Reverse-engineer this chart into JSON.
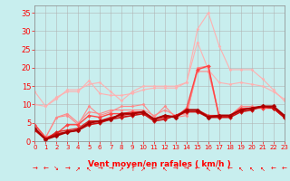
{
  "x": [
    0,
    1,
    2,
    3,
    4,
    5,
    6,
    7,
    8,
    9,
    10,
    11,
    12,
    13,
    14,
    15,
    16,
    17,
    18,
    19,
    20,
    21,
    22,
    23
  ],
  "series": [
    {
      "color": "#FFB0B0",
      "lw": 0.8,
      "marker": "D",
      "ms": 1.5,
      "y": [
        13.5,
        9.5,
        11.5,
        14.0,
        14.0,
        15.5,
        16.0,
        13.5,
        11.0,
        13.5,
        15.0,
        15.0,
        15.0,
        15.0,
        16.0,
        30.5,
        35.0,
        26.0,
        19.5,
        19.5,
        19.5,
        17.0,
        14.0,
        11.0
      ]
    },
    {
      "color": "#FFB0B0",
      "lw": 0.8,
      "marker": "D",
      "ms": 1.5,
      "y": [
        10.0,
        9.5,
        12.0,
        13.5,
        13.5,
        16.5,
        13.0,
        12.5,
        12.5,
        13.0,
        14.0,
        14.5,
        14.5,
        14.5,
        16.0,
        27.0,
        19.5,
        16.0,
        15.5,
        16.0,
        15.5,
        15.0,
        13.5,
        11.5
      ]
    },
    {
      "color": "#FF8888",
      "lw": 0.8,
      "marker": "D",
      "ms": 1.5,
      "y": [
        4.5,
        1.0,
        6.5,
        7.0,
        4.5,
        9.5,
        7.0,
        8.0,
        9.5,
        9.5,
        10.0,
        6.5,
        9.5,
        6.5,
        7.0,
        20.0,
        20.5,
        7.0,
        7.0,
        9.5,
        9.5,
        9.0,
        9.0,
        6.5
      ]
    },
    {
      "color": "#FF8888",
      "lw": 0.8,
      "marker": "D",
      "ms": 1.5,
      "y": [
        4.5,
        1.0,
        6.5,
        7.5,
        5.0,
        8.0,
        7.5,
        8.5,
        8.5,
        8.5,
        8.5,
        7.0,
        8.5,
        7.0,
        7.5,
        19.0,
        19.0,
        7.0,
        6.5,
        9.0,
        9.0,
        9.0,
        9.5,
        6.5
      ]
    },
    {
      "color": "#FF4444",
      "lw": 1.0,
      "marker": "D",
      "ms": 2.0,
      "y": [
        4.5,
        1.0,
        2.0,
        4.5,
        4.5,
        7.0,
        6.5,
        7.5,
        7.5,
        8.0,
        8.0,
        6.0,
        7.0,
        6.5,
        9.0,
        19.5,
        20.5,
        6.5,
        7.0,
        9.0,
        9.0,
        9.0,
        9.0,
        6.5
      ]
    },
    {
      "color": "#DD2222",
      "lw": 1.0,
      "marker": "D",
      "ms": 2.0,
      "y": [
        3.5,
        0.5,
        2.5,
        3.0,
        3.5,
        5.5,
        5.5,
        6.5,
        7.0,
        7.5,
        8.0,
        6.0,
        6.5,
        7.0,
        8.5,
        8.5,
        7.0,
        7.0,
        7.0,
        8.5,
        9.0,
        9.5,
        9.0,
        6.5
      ]
    },
    {
      "color": "#CC1111",
      "lw": 1.2,
      "marker": "D",
      "ms": 2.0,
      "y": [
        3.0,
        0.5,
        2.0,
        2.5,
        3.0,
        4.5,
        5.0,
        6.0,
        6.5,
        7.0,
        7.5,
        5.5,
        6.0,
        7.0,
        8.0,
        8.0,
        6.5,
        6.5,
        6.5,
        8.0,
        8.5,
        9.5,
        9.0,
        6.5
      ]
    },
    {
      "color": "#AA0000",
      "lw": 1.5,
      "marker": "D",
      "ms": 2.5,
      "y": [
        3.5,
        0.5,
        1.5,
        2.5,
        3.0,
        5.0,
        5.5,
        6.0,
        7.5,
        7.5,
        8.0,
        6.0,
        7.0,
        6.5,
        8.5,
        8.5,
        6.5,
        7.0,
        7.0,
        8.5,
        9.0,
        9.5,
        9.5,
        7.0
      ]
    }
  ],
  "arrows": [
    "→",
    "←",
    "↘",
    "→",
    "↗",
    "↖",
    "→",
    "→",
    "↗",
    "↑",
    "↗",
    "←",
    "↖",
    "→",
    "→",
    "←",
    "↖",
    "↖",
    "←",
    "↖",
    "↖",
    "↖",
    "←",
    "←"
  ],
  "xlabel": "Vent moyen/en rafales ( km/h )",
  "xlim": [
    0,
    23
  ],
  "ylim": [
    0,
    37
  ],
  "yticks": [
    0,
    5,
    10,
    15,
    20,
    25,
    30,
    35
  ],
  "xticks": [
    0,
    1,
    2,
    3,
    4,
    5,
    6,
    7,
    8,
    9,
    10,
    11,
    12,
    13,
    14,
    15,
    16,
    17,
    18,
    19,
    20,
    21,
    22,
    23
  ],
  "bg_color": "#C8EEEE",
  "grid_color": "#B0B0B0",
  "axis_color": "#888888",
  "tick_color": "#FF0000",
  "label_color": "#FF0000",
  "arrow_color": "#FF0000"
}
